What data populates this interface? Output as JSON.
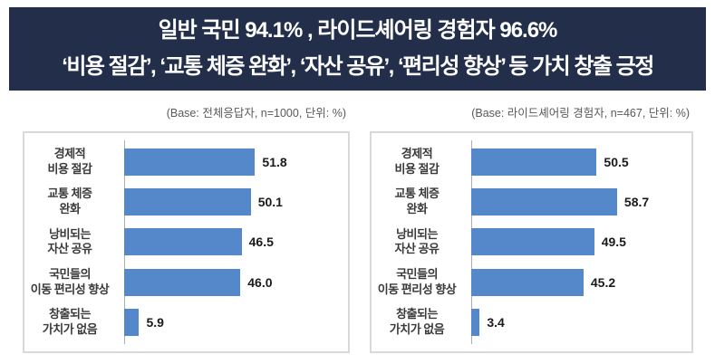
{
  "header": {
    "line1": "일반 국민 94.1% , 라이드셰어링 경험자 96.6%",
    "line2": "‘비용 절감’, ‘교통 체증 완화’, ‘자산 공유’, ‘편리성 향상’ 등 가치 창출 긍정",
    "bg_color": "#232F4A",
    "text_color": "#FFFFFF"
  },
  "chart_data": [
    {
      "type": "bar",
      "orientation": "horizontal",
      "base_caption": "(Base: 전체응답자, n=1000, 단위: %)",
      "categories": [
        "경제적\n비용 절감",
        "교통 체증\n완화",
        "낭비되는\n자산 공유",
        "국민들의\n이동 편리성 향상",
        "창출되는\n가치가 없음"
      ],
      "values": [
        51.8,
        50.1,
        46.5,
        46.0,
        5.9
      ],
      "value_labels": [
        "51.8",
        "50.1",
        "46.5",
        "46.0",
        "5.9"
      ],
      "unit": "%",
      "bar_color": "#5588CB",
      "xlim": [
        0,
        85
      ],
      "grid": false,
      "legend": false,
      "data_labels": true
    },
    {
      "type": "bar",
      "orientation": "horizontal",
      "base_caption": "(Base: 라이드셰어링 경험자, n=467, 단위: %)",
      "categories": [
        "경제적\n비용 절감",
        "교통 체증\n완화",
        "낭비되는\n자산 공유",
        "국민들의\n이동 편리성 향상",
        "창출되는\n가치가 없음"
      ],
      "values": [
        50.5,
        58.7,
        49.5,
        45.2,
        3.4
      ],
      "value_labels": [
        "50.5",
        "58.7",
        "49.5",
        "45.2",
        "3.4"
      ],
      "unit": "%",
      "bar_color": "#5588CB",
      "xlim": [
        0,
        85
      ],
      "grid": false,
      "legend": false,
      "data_labels": true
    }
  ]
}
